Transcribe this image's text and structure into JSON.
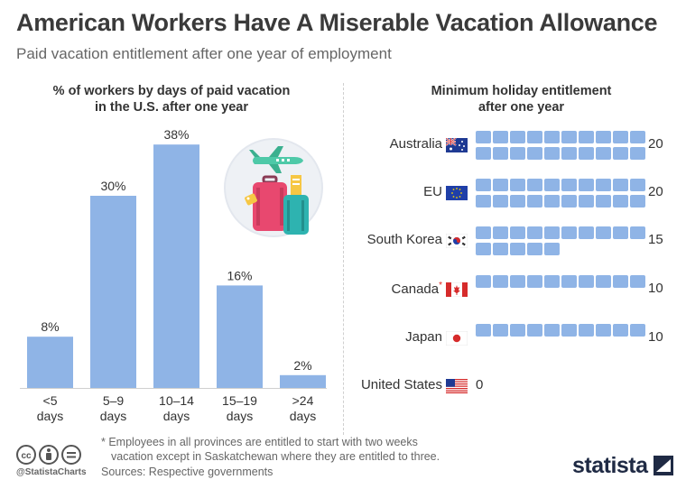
{
  "header": {
    "title": "American Workers Have A Miserable Vacation Allowance",
    "subtitle": "Paid vacation entitlement after one year of employment"
  },
  "colors": {
    "bar": "#8fb4e6",
    "square": "#8fb4e6",
    "text": "#333333"
  },
  "chart_data": [
    {
      "type": "bar",
      "title": "% of workers by days of paid vacation in the U.S. after one year",
      "title_lines": [
        "% of workers by days of paid vacation",
        "in the U.S. after one year"
      ],
      "categories": [
        "<5 days",
        "5–9 days",
        "10–14 days",
        "15–19 days",
        ">24 days"
      ],
      "category_lines": [
        [
          "<5",
          "days"
        ],
        [
          "5–9",
          "days"
        ],
        [
          "10–14",
          "days"
        ],
        [
          "15–19",
          "days"
        ],
        [
          ">24",
          "days"
        ]
      ],
      "values": [
        8,
        30,
        38,
        16,
        2
      ],
      "value_labels": [
        "8%",
        "30%",
        "38%",
        "16%",
        "2%"
      ],
      "ylim": [
        0,
        40
      ]
    },
    {
      "type": "bar",
      "title": "Minimum holiday entitlement after one year",
      "title_lines": [
        "Minimum holiday entitlement",
        "after one year"
      ],
      "categories": [
        "Australia",
        "EU",
        "South Korea",
        "Canada",
        "Japan",
        "United States"
      ],
      "values": [
        20,
        20,
        15,
        10,
        10,
        0
      ],
      "value_labels": [
        "20",
        "20",
        "15",
        "10",
        "10",
        "0"
      ],
      "annotations": {
        "Canada": "*"
      },
      "flag_icons": [
        "australia-flag-icon",
        "eu-flag-icon",
        "south-korea-flag-icon",
        "canada-flag-icon",
        "japan-flag-icon",
        "united-states-flag-icon"
      ]
    }
  ],
  "footer": {
    "note_line1": "* Employees in all provinces are entitled to start with two weeks",
    "note_line2": "vacation except in Saskatchewan where they are entitled to three.",
    "sources": "Sources: Respective governments",
    "handle": "@StatistaCharts",
    "brand": "statista",
    "license_icons": [
      "cc-icon",
      "attribution-icon",
      "no-derivatives-icon"
    ]
  }
}
